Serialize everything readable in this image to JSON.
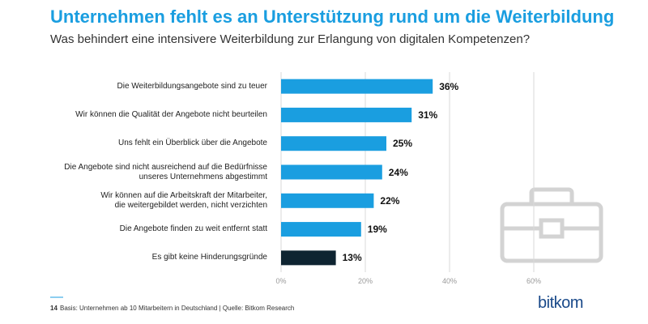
{
  "chart_data": {
    "type": "barh",
    "title": "Unternehmen fehlt es an Unterstützung rund um die Weiterbildung",
    "subtitle": "Was behindert eine intensivere Weiterbildung zur Erlangung von digitalen Kompetenzen?",
    "categories": [
      "Die Weiterbildungsangebote sind zu teuer",
      "Wir können die Qualität der Angebote nicht beurteilen",
      "Uns fehlt ein Überblick über die Angebote",
      "Die Angebote sind nicht ausreichend auf die Bedürfnisse\nunseres Unternehmens abgestimmt",
      "Wir können auf die Arbeitskraft der Mitarbeiter,\ndie weitergebildet werden, nicht verzichten",
      "Die Angebote finden zu weit entfernt statt",
      "Es gibt keine Hinderungsgründe"
    ],
    "values": [
      36,
      31,
      25,
      24,
      22,
      19,
      13
    ],
    "value_labels": [
      "36%",
      "31%",
      "25%",
      "24%",
      "22%",
      "19%",
      "13%"
    ],
    "colors": [
      "#1a9ee0",
      "#1a9ee0",
      "#1a9ee0",
      "#1a9ee0",
      "#1a9ee0",
      "#1a9ee0",
      "#0e2431"
    ],
    "xlim": [
      0,
      60
    ],
    "xticks": [
      {
        "value": 0,
        "label": "0%"
      },
      {
        "value": 20,
        "label": "20%"
      },
      {
        "value": 40,
        "label": "40%"
      },
      {
        "value": 60,
        "label": "60%"
      }
    ],
    "grid": true,
    "page_number": "14",
    "footnote": "Basis: Unternehmen ab 10 Mitarbeitern in Deutschland | Quelle: Bitkom Research",
    "logo": "bitkom"
  }
}
